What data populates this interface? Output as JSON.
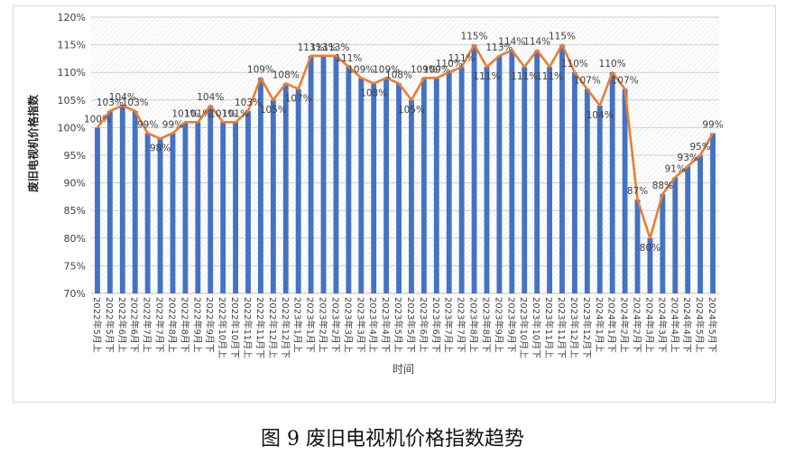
{
  "caption": "图 9  废旧电视机价格指数趋势",
  "chart_data": {
    "type": "bar+line",
    "xlabel": "时间",
    "ylabel": "废旧电视机价格指数",
    "ylim": [
      70,
      120
    ],
    "yticks": [
      "70%",
      "75%",
      "80%",
      "85%",
      "90%",
      "95%",
      "100%",
      "105%",
      "110%",
      "115%",
      "120%"
    ],
    "grid": true,
    "categories": [
      "2022年5月上",
      "2022年5月下",
      "2022年6月上",
      "2022年6月下",
      "2022年7月上",
      "2022年7月下",
      "2022年8月上",
      "2022年8月下",
      "2022年9月上",
      "2022年9月下",
      "2022年10月上",
      "2022年10月下",
      "2022年11月上",
      "2022年11月下",
      "2022年12月上",
      "2022年12月下",
      "2023年1月上",
      "2023年1月下",
      "2023年2月上",
      "2023年2月下",
      "2023年3月上",
      "2023年3月下",
      "2023年4月上",
      "2023年4月下",
      "2023年5月上",
      "2023年5月下",
      "2023年6月上",
      "2023年6月下",
      "2023年7月上",
      "2023年7月下",
      "2023年8月上",
      "2023年8月下",
      "2023年9月上",
      "2023年9月下",
      "2023年10月上",
      "2023年10月下",
      "2023年11月上",
      "2023年11月下",
      "2023年12月上",
      "2023年12月下",
      "2024年1月上",
      "2024年1月下",
      "2024年2月上",
      "2024年2月下",
      "2024年3月上",
      "2024年3月下",
      "2024年4月上",
      "2024年4月下",
      "2024年5月上",
      "2024年5月下"
    ],
    "values": [
      100,
      103,
      104,
      103,
      99,
      98,
      99,
      101,
      101,
      104,
      101,
      101,
      103,
      109,
      105,
      108,
      107,
      113,
      113,
      113,
      111,
      109,
      108,
      109,
      108,
      105,
      109,
      109,
      110,
      111,
      115,
      111,
      113,
      114,
      111,
      114,
      111,
      115,
      110,
      107,
      104,
      110,
      107,
      87,
      80,
      88,
      91,
      93,
      95,
      99
    ],
    "labels": [
      "100%",
      "103%",
      "104%",
      "103%",
      "99%",
      "98%",
      "99%",
      "101%",
      "101%",
      "104%",
      "101%",
      "101%",
      "103%",
      "109%",
      "105%",
      "108%",
      "107%",
      "113%",
      "113%",
      "113%",
      "111%",
      "109%",
      "108%",
      "109%",
      "108%",
      "105%",
      "109%",
      "109%",
      "110%",
      "111%",
      "115%",
      "111%",
      "113%",
      "114%",
      "111%",
      "114%",
      "111%",
      "115%",
      "110%",
      "107%",
      "104%",
      "110%",
      "107%",
      "87%",
      "80%",
      "88%",
      "91%",
      "93%",
      "95%",
      "99%"
    ],
    "bar_color": "#4472c4",
    "line_color": "#ed7d31"
  }
}
